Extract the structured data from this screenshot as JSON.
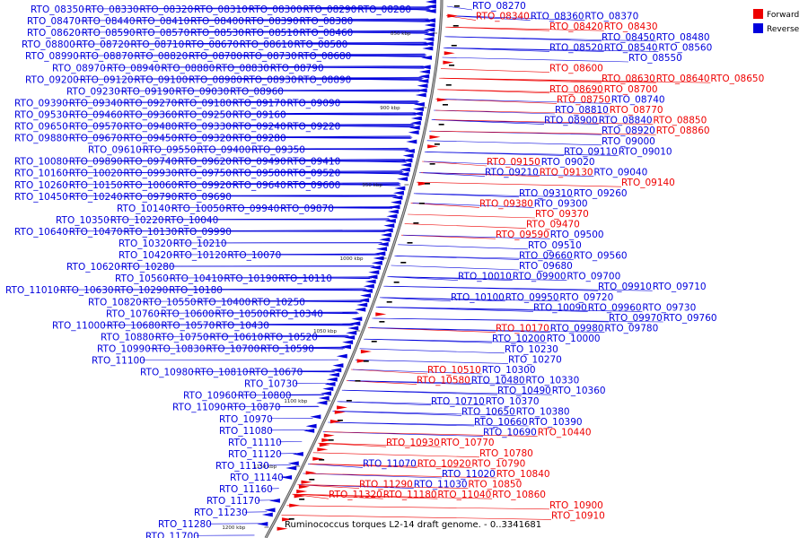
{
  "colors": {
    "forward": "#ee0000",
    "reverse": "#0000dd",
    "backbone": "#888888",
    "tick": "#000000"
  },
  "legend": [
    {
      "label": "Forward",
      "color": "#ee0000"
    },
    {
      "label": "Reverse",
      "color": "#0000dd"
    }
  ],
  "caption": "Ruminococcus torques L2-14 draft genome. - 0..3341681",
  "ticks": [
    "850 kbp",
    "900 kbp",
    "950 kbp",
    "1000 kbp",
    "1050 kbp",
    "1100 kbp",
    "1150 kbp",
    "1200 kbp"
  ],
  "left_labels": [
    [
      "RTO_08350",
      "RTO_08330",
      "RTO_08320",
      "RTO_08310",
      "RTO_08300",
      "RTO_08290",
      "RTO_08280"
    ],
    [
      "RTO_08470",
      "RTO_08440",
      "RTO_08410",
      "RTO_08400",
      "RTO_08390",
      "RTO_08380"
    ],
    [
      "RTO_08620",
      "RTO_08590",
      "RTO_08570",
      "RTO_08530",
      "RTO_08510",
      "RTO_08460"
    ],
    [
      "RTO_08800",
      "RTO_08720",
      "RTO_08710",
      "RTO_08670",
      "RTO_08610",
      "RTO_08580"
    ],
    [
      "RTO_08990",
      "RTO_08870",
      "RTO_08820",
      "RTO_08780",
      "RTO_08730",
      "RTO_08680"
    ],
    [
      "RTO_08970",
      "RTO_08940",
      "RTO_08880",
      "RTO_08830",
      "RTO_08790"
    ],
    [
      "RTO_09200",
      "RTO_09120",
      "RTO_09100",
      "RTO_08980",
      "RTO_08930",
      "RTO_08890"
    ],
    [
      "RTO_09230",
      "RTO_09190",
      "RTO_09030",
      "RTO_08960"
    ],
    [
      "RTO_09390",
      "RTO_09340",
      "RTO_09270",
      "RTO_09180",
      "RTO_09170",
      "RTO_09090"
    ],
    [
      "RTO_09530",
      "RTO_09460",
      "RTO_09360",
      "RTO_09250",
      "RTO_09160"
    ],
    [
      "RTO_09650",
      "RTO_09570",
      "RTO_09480",
      "RTO_09330",
      "RTO_09240",
      "RTO_09220"
    ],
    [
      "RTO_09880",
      "RTO_09670",
      "RTO_09450",
      "RTO_09320",
      "RTO_09280"
    ],
    [
      "RTO_09610",
      "RTO_09550",
      "RTO_09400",
      "RTO_09350"
    ],
    [
      "RTO_10080",
      "RTO_09890",
      "RTO_09740",
      "RTO_09620",
      "RTO_09490",
      "RTO_09410"
    ],
    [
      "RTO_10160",
      "RTO_10020",
      "RTO_09930",
      "RTO_09750",
      "RTO_09580",
      "RTO_09520"
    ],
    [
      "RTO_10260",
      "RTO_10150",
      "RTO_10060",
      "RTO_09920",
      "RTO_09640",
      "RTO_09600"
    ],
    [
      "RTO_10450",
      "RTO_10240",
      "RTO_09790",
      "RTO_09690"
    ],
    [
      "RTO_10140",
      "RTO_10050",
      "RTO_09940",
      "RTO_09870"
    ],
    [
      "RTO_10350",
      "RTO_10220",
      "RTO_10040"
    ],
    [
      "RTO_10640",
      "RTO_10470",
      "RTO_10130",
      "RTO_09990"
    ],
    [
      "RTO_10320",
      "RTO_10210"
    ],
    [
      "RTO_10420",
      "RTO_10120",
      "RTO_10070"
    ],
    [
      "RTO_10620",
      "RTO_10280"
    ],
    [
      "RTO_10560",
      "RTO_10410",
      "RTO_10190",
      "RTO_10110"
    ],
    [
      "RTO_11010",
      "RTO_10630",
      "RTO_10290",
      "RTO_10180"
    ],
    [
      "RTO_10820",
      "RTO_10550",
      "RTO_10400",
      "RTO_10250"
    ],
    [
      "RTO_10760",
      "RTO_10600",
      "RTO_10500",
      "RTO_10340"
    ],
    [
      "RTO_11000",
      "RTO_10680",
      "RTO_10570",
      "RTO_10430"
    ],
    [
      "RTO_10880",
      "RTO_10750",
      "RTO_10610",
      "RTO_10520"
    ],
    [
      "RTO_10990",
      "RTO_10830",
      "RTO_10700",
      "RTO_10590"
    ],
    [
      "RTO_11100"
    ],
    [
      "RTO_10980",
      "RTO_10810",
      "RTO_10670"
    ],
    [
      "RTO_10730"
    ],
    [
      "RTO_10960",
      "RTO_10800"
    ],
    [
      "RTO_11090",
      "RTO_10870"
    ],
    [
      "RTO_10970"
    ],
    [
      "RTO_11080"
    ],
    [
      "RTO_11110"
    ],
    [
      "RTO_11120"
    ],
    [
      "RTO_11130"
    ],
    [
      "RTO_11140"
    ],
    [
      "RTO_11160"
    ],
    [
      "RTO_11170"
    ],
    [
      "RTO_11230"
    ],
    [
      "RTO_11280"
    ],
    [
      "RTO_11700"
    ]
  ],
  "right_labels": [
    [
      "RTO_08270"
    ],
    [
      "RTO_08340*",
      "RTO_08360",
      "RTO_08370"
    ],
    [
      "RTO_08420*",
      "RTO_08430*"
    ],
    [
      "RTO_08450",
      "RTO_08480"
    ],
    [
      "RTO_08520",
      "RTO_08540",
      "RTO_08560"
    ],
    [
      "RTO_08550"
    ],
    [
      "RTO_08600*"
    ],
    [
      "RTO_08630*",
      "RTO_08640*",
      "RTO_08650*"
    ],
    [
      "RTO_08690*",
      "RTO_08700*"
    ],
    [
      "RTO_08750*",
      "RTO_08740"
    ],
    [
      "RTO_08810",
      "RTO_08770*"
    ],
    [
      "RTO_08900",
      "RTO_08840",
      "RTO_08850*"
    ],
    [
      "RTO_08920",
      "RTO_08860*"
    ],
    [
      "RTO_09000"
    ],
    [
      "RTO_09110",
      "RTO_09010"
    ],
    [
      "RTO_09150*",
      "RTO_09020"
    ],
    [
      "RTO_09210",
      "RTO_09130*",
      "RTO_09040"
    ],
    [
      "RTO_09140*"
    ],
    [
      "RTO_09310",
      "RTO_09260"
    ],
    [
      "RTO_09380*",
      "RTO_09300"
    ],
    [
      "RTO_09370*"
    ],
    [
      "RTO_09470*"
    ],
    [
      "RTO_09590*",
      "RTO_09500"
    ],
    [
      "RTO_09510"
    ],
    [
      "RTO_09660",
      "RTO_09560"
    ],
    [
      "RTO_09680"
    ],
    [
      "RTO_10010",
      "RTO_09900",
      "RTO_09700"
    ],
    [
      "RTO_09910",
      "RTO_09710"
    ],
    [
      "RTO_10100",
      "RTO_09950",
      "RTO_09720"
    ],
    [
      "RTO_10090",
      "RTO_09960",
      "RTO_09730"
    ],
    [
      "RTO_09970",
      "RTO_09760"
    ],
    [
      "RTO_10170*",
      "RTO_09980",
      "RTO_09780"
    ],
    [
      "RTO_10200",
      "RTO_10000"
    ],
    [
      "RTO_10230"
    ],
    [
      "RTO_10270"
    ],
    [
      "RTO_10510*",
      "RTO_10300"
    ],
    [
      "RTO_10580*",
      "RTO_10480",
      "RTO_10330"
    ],
    [
      "RTO_10490",
      "RTO_10360"
    ],
    [
      "RTO_10710",
      "RTO_10370"
    ],
    [
      "RTO_10650",
      "RTO_10380"
    ],
    [
      "RTO_10660",
      "RTO_10390"
    ],
    [
      "RTO_10690",
      "RTO_10440*"
    ],
    [
      "RTO_10930*",
      "RTO_10770*"
    ],
    [
      "RTO_10780*"
    ],
    [
      "RTO_11070",
      "RTO_10920*",
      "RTO_10790*"
    ],
    [
      "RTO_11020",
      "RTO_10840*"
    ],
    [
      "RTO_11290*",
      "RTO_11030",
      "RTO_10850*"
    ],
    [
      "RTO_11320*",
      "RTO_11180*",
      "RTO_11040*",
      "RTO_10860*"
    ],
    [
      "RTO_10900*"
    ],
    [
      "RTO_10910*"
    ]
  ]
}
